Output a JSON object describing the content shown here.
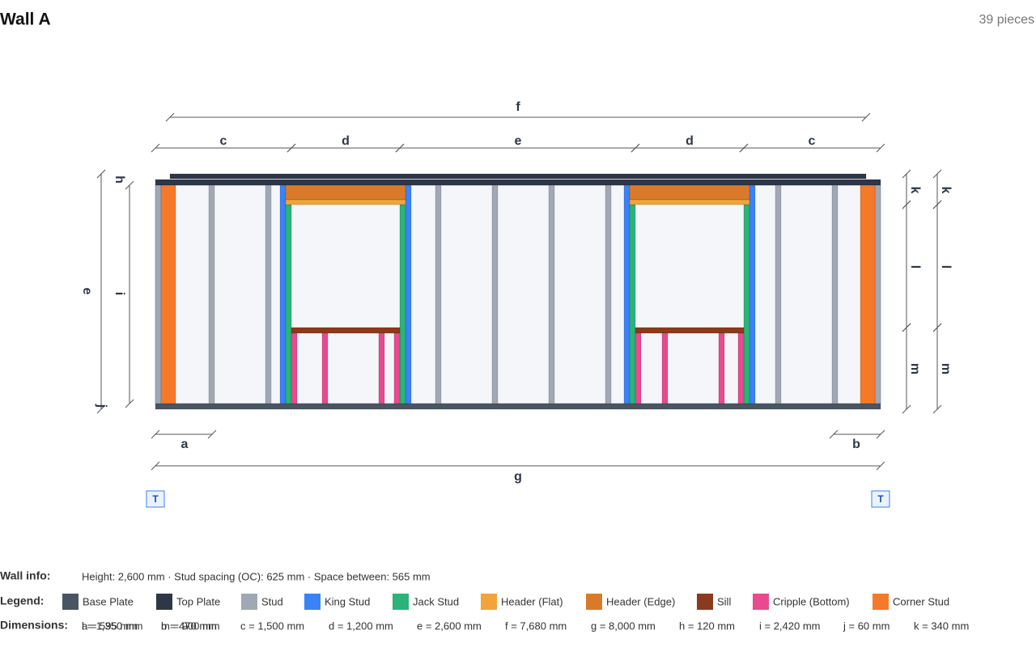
{
  "header": {
    "title": "Wall A",
    "pieces": "39 pieces"
  },
  "drawing_labels": [
    "f",
    "c",
    "d",
    "e",
    "d",
    "c",
    "e",
    "i",
    "h",
    "j",
    "k",
    "l",
    "m",
    "k",
    "l",
    "m",
    "a",
    "b",
    "g",
    "T",
    "T"
  ],
  "wall_info": {
    "label": "Wall info:",
    "text": "Height: 2,600 mm · Stud spacing (OC): 625 mm · Space between: 565 mm"
  },
  "legend": {
    "label": "Legend:",
    "items": [
      {
        "label": "Base Plate",
        "color": "#4a5563"
      },
      {
        "label": "Top Plate",
        "color": "#2d3748"
      },
      {
        "label": "Stud",
        "color": "#a0a8b5"
      },
      {
        "label": "King Stud",
        "color": "#3b82f6"
      },
      {
        "label": "Jack Stud",
        "color": "#2bb37a"
      },
      {
        "label": "Header (Flat)",
        "color": "#f0a43a"
      },
      {
        "label": "Header (Edge)",
        "color": "#d97a2a"
      },
      {
        "label": "Sill",
        "color": "#8b3a1e"
      },
      {
        "label": "Cripple (Bottom)",
        "color": "#e84a8f"
      },
      {
        "label": "Corner Stud",
        "color": "#f47a2a"
      }
    ]
  },
  "dimensions": {
    "label": "Dimensions:",
    "items": [
      "a = 595 mm",
      "b = 470 mm",
      "c = 1,500 mm",
      "d = 1,200 mm",
      "e = 2,600 mm",
      "f = 7,680 mm",
      "g = 8,000 mm",
      "h = 120 mm",
      "i = 2,420 mm",
      "j = 60 mm",
      "k = 340 mm",
      "l = 1,350 mm",
      "m = 900 mm"
    ]
  }
}
